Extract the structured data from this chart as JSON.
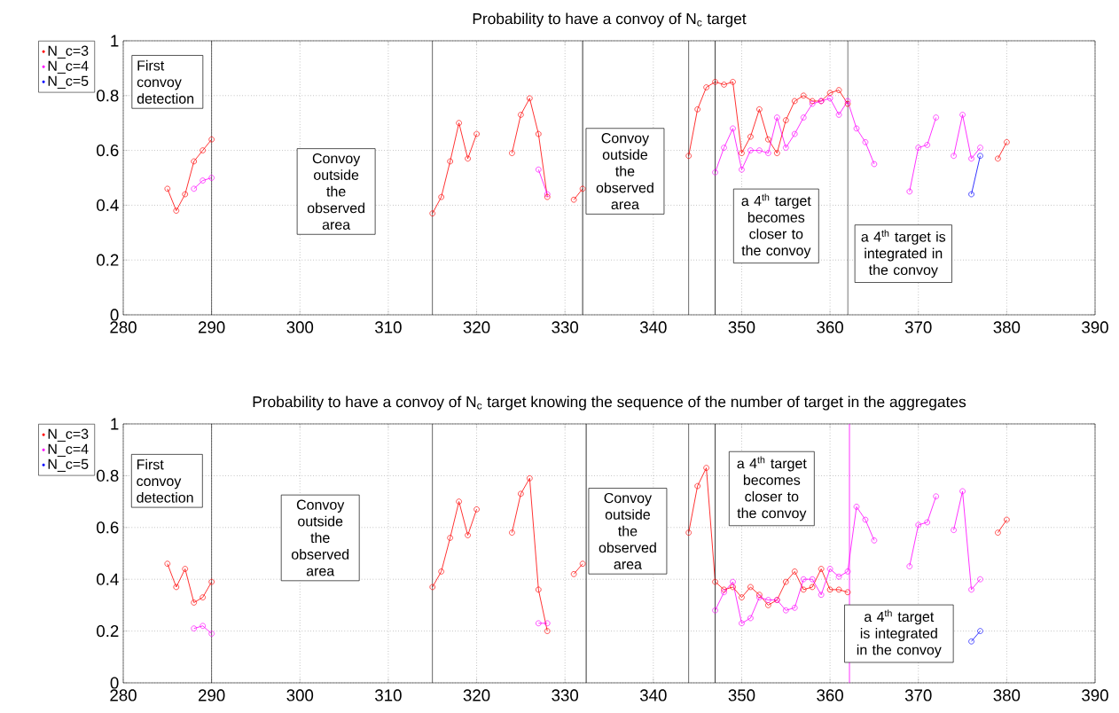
{
  "chart_data": [
    {
      "type": "line",
      "title": "Probability to have a convoy of N$_{c}$ target",
      "xlim": [
        280,
        390
      ],
      "xticks": [
        280,
        290,
        300,
        310,
        320,
        330,
        340,
        350,
        360,
        370,
        380,
        390
      ],
      "ylim": [
        0,
        1
      ],
      "yticks": [
        0,
        0.2,
        0.4,
        0.6,
        0.8,
        1
      ],
      "grid": true,
      "legend": "top left",
      "marker": "circle",
      "series": [
        {
          "name": "N_c=3",
          "color": "#ff0000",
          "x": [
            285,
            286,
            287,
            288,
            289,
            290,
            291,
            315,
            316,
            317,
            318,
            319,
            320,
            321,
            324,
            325,
            326,
            327,
            328,
            329,
            331,
            332,
            333,
            344,
            345,
            346,
            347,
            348,
            349,
            350,
            351,
            352,
            353,
            354,
            355,
            356,
            357,
            358,
            359,
            360,
            361,
            362,
            363,
            379,
            380
          ],
          "values": [
            0.46,
            0.38,
            0.44,
            0.56,
            0.6,
            0.64,
            null,
            0.37,
            0.43,
            0.56,
            0.7,
            0.57,
            0.66,
            null,
            0.59,
            0.73,
            0.79,
            0.66,
            0.43,
            null,
            0.42,
            0.46,
            null,
            0.58,
            0.75,
            0.83,
            0.85,
            0.84,
            0.85,
            0.59,
            0.65,
            0.75,
            0.64,
            0.59,
            0.71,
            0.78,
            0.8,
            0.78,
            0.78,
            0.81,
            0.82,
            0.77,
            null,
            0.57,
            0.63
          ]
        },
        {
          "name": "N_c=4",
          "color": "#ff00ff",
          "x": [
            288,
            289,
            290,
            291,
            327,
            328,
            329,
            347,
            348,
            349,
            350,
            351,
            352,
            353,
            354,
            355,
            356,
            357,
            358,
            359,
            360,
            361,
            362,
            363,
            364,
            365,
            366,
            369,
            370,
            371,
            372,
            373,
            374,
            375,
            376,
            377
          ],
          "values": [
            0.46,
            0.49,
            0.5,
            null,
            0.53,
            0.44,
            null,
            0.52,
            0.61,
            0.68,
            0.53,
            0.6,
            0.6,
            0.59,
            0.72,
            0.61,
            0.66,
            0.72,
            0.77,
            0.78,
            0.79,
            0.73,
            0.78,
            0.68,
            0.63,
            0.55,
            null,
            0.45,
            0.61,
            0.62,
            0.72,
            null,
            0.58,
            0.73,
            0.57,
            0.61
          ]
        },
        {
          "name": "N_c=5",
          "color": "#0000ff",
          "x": [
            376,
            377
          ],
          "values": [
            0.44,
            0.58
          ]
        }
      ],
      "ref_lines": [
        {
          "axis": "x",
          "value": 290,
          "color": "#000000"
        },
        {
          "axis": "x",
          "value": 315,
          "color": "#000000"
        },
        {
          "axis": "x",
          "value": 332,
          "color": "#000000"
        },
        {
          "axis": "x",
          "value": 344,
          "color": "#000000"
        },
        {
          "axis": "x",
          "value": 347,
          "color": "#000000"
        },
        {
          "axis": "x",
          "value": 362,
          "color": "#000000"
        }
      ],
      "annotations": [
        "First convoy detection",
        "Convoy outside the observed area",
        "Convoy outside the observed area",
        "a 4$^{th}$ target becomes closer to the convoy",
        "a 4$^{th}$ target is integrated in the convoy"
      ]
    },
    {
      "type": "line",
      "title": "Probability to have a convoy of N$_{c}$ target knowing the sequence of the number of target in the aggregates",
      "xlim": [
        280,
        390
      ],
      "xticks": [
        280,
        290,
        300,
        310,
        320,
        330,
        340,
        350,
        360,
        370,
        380,
        390
      ],
      "ylim": [
        0,
        1
      ],
      "yticks": [
        0,
        0.2,
        0.4,
        0.6,
        0.8,
        1
      ],
      "grid": true,
      "legend": "top left",
      "marker": "circle",
      "series": [
        {
          "name": "N_c=3",
          "color": "#ff0000",
          "x": [
            285,
            286,
            287,
            288,
            289,
            290,
            291,
            315,
            316,
            317,
            318,
            319,
            320,
            321,
            324,
            325,
            326,
            327,
            328,
            329,
            331,
            332,
            333,
            344,
            345,
            346,
            347,
            348,
            349,
            350,
            351,
            352,
            353,
            354,
            355,
            356,
            357,
            358,
            359,
            360,
            361,
            362,
            363,
            379,
            380
          ],
          "values": [
            0.46,
            0.37,
            0.44,
            0.31,
            0.33,
            0.39,
            null,
            0.37,
            0.43,
            0.56,
            0.7,
            0.57,
            0.67,
            null,
            0.58,
            0.73,
            0.79,
            0.36,
            0.2,
            null,
            0.42,
            0.46,
            null,
            0.58,
            0.76,
            0.83,
            0.39,
            0.36,
            0.37,
            0.33,
            0.37,
            0.34,
            0.3,
            0.32,
            0.39,
            0.43,
            0.36,
            0.37,
            0.44,
            0.36,
            0.36,
            0.35,
            null,
            0.58,
            0.63
          ]
        },
        {
          "name": "N_c=4",
          "color": "#ff00ff",
          "x": [
            288,
            289,
            290,
            291,
            327,
            328,
            329,
            347,
            348,
            349,
            350,
            351,
            352,
            353,
            354,
            355,
            356,
            357,
            358,
            359,
            360,
            361,
            362,
            363,
            364,
            365,
            366,
            369,
            370,
            371,
            372,
            373,
            374,
            375,
            376,
            377
          ],
          "values": [
            0.21,
            0.22,
            0.19,
            null,
            0.23,
            0.23,
            null,
            0.28,
            0.35,
            0.39,
            0.23,
            0.25,
            0.33,
            0.32,
            0.32,
            0.28,
            0.29,
            0.4,
            0.4,
            0.34,
            0.44,
            0.41,
            0.43,
            0.68,
            0.63,
            0.55,
            null,
            0.45,
            0.61,
            0.62,
            0.72,
            null,
            0.59,
            0.74,
            0.36,
            0.4
          ]
        },
        {
          "name": "N_c=5",
          "color": "#0000ff",
          "x": [
            376,
            377
          ],
          "values": [
            0.16,
            0.2
          ]
        }
      ],
      "ref_lines": [
        {
          "axis": "x",
          "value": 290,
          "color": "#000000"
        },
        {
          "axis": "x",
          "value": 315,
          "color": "#000000"
        },
        {
          "axis": "x",
          "value": 332.4,
          "color": "#000000"
        },
        {
          "axis": "x",
          "value": 344,
          "color": "#000000"
        },
        {
          "axis": "x",
          "value": 347,
          "color": "#000000"
        },
        {
          "axis": "x",
          "value": 362.2,
          "color": "#ff00ff"
        }
      ],
      "annotations": [
        "First convoy detection",
        "Convoy outside the observed area",
        "Convoy outside the observed area",
        "a 4$^{th}$ target becomes closer to the convoy",
        "a 4$^{th}$ target is integrated in the convoy"
      ]
    }
  ]
}
